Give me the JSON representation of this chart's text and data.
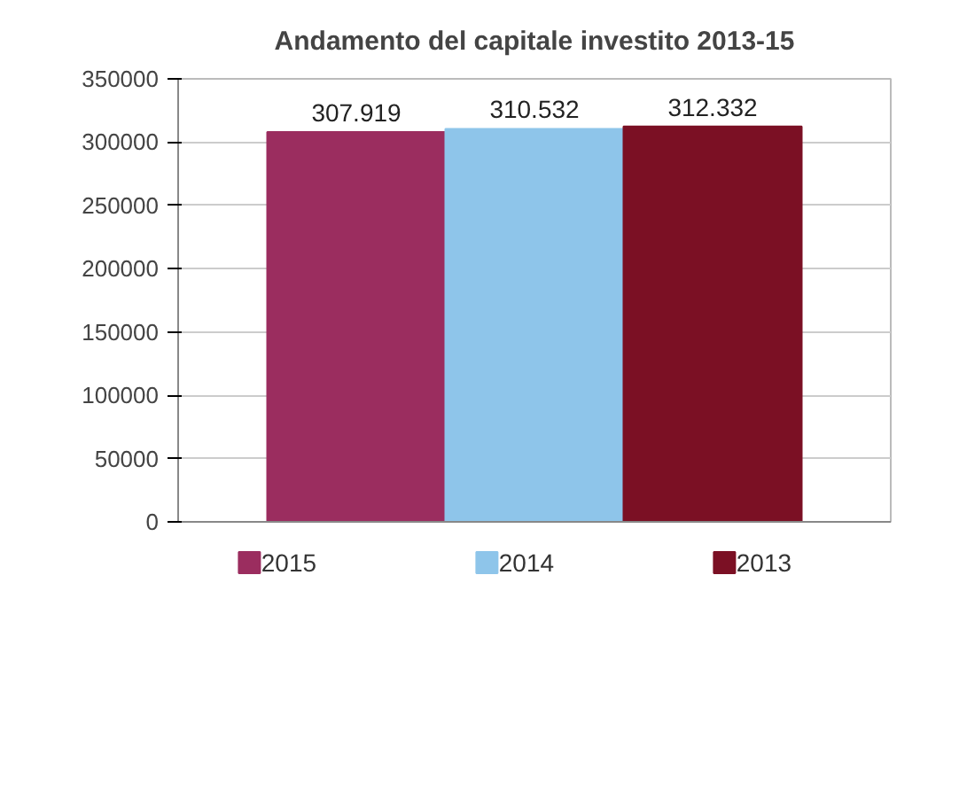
{
  "chart_data": {
    "type": "bar",
    "title": "Andamento del capitale investito 2013-15",
    "categories": [
      null
    ],
    "series": [
      {
        "name": "2015",
        "color": "#9b2d5f",
        "values": [
          307919
        ],
        "value_labels": [
          "307.919"
        ]
      },
      {
        "name": "2014",
        "color": "#8ec5ea",
        "values": [
          310532
        ],
        "value_labels": [
          "310.532"
        ]
      },
      {
        "name": "2013",
        "color": "#7b1024",
        "values": [
          312332
        ],
        "value_labels": [
          "312.332"
        ]
      }
    ],
    "ylim": [
      0,
      350000
    ],
    "yticks": [
      0,
      50000,
      100000,
      150000,
      200000,
      250000,
      300000,
      350000
    ],
    "grid": "y",
    "legend": "bottom"
  }
}
